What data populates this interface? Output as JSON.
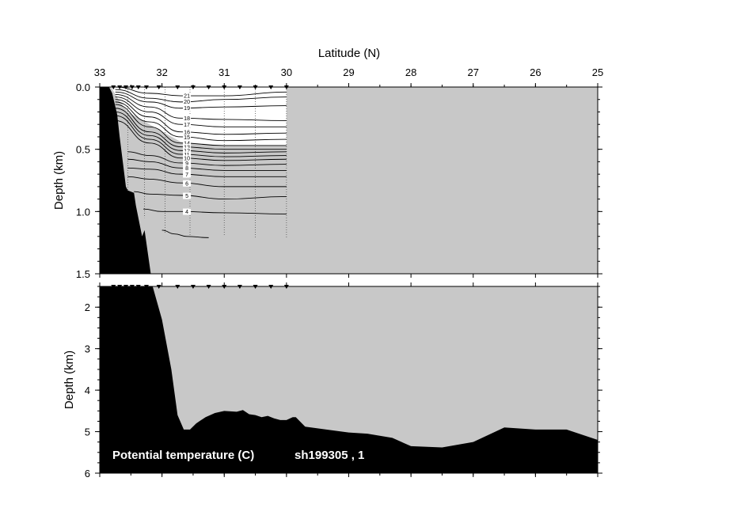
{
  "chart_data": {
    "type": "section-contour",
    "xlabel": "Latitude (N)",
    "ylabel": "Depth (km)",
    "xlim": [
      33,
      25
    ],
    "x_ticks": [
      "33",
      "32",
      "31",
      "30",
      "29",
      "28",
      "27",
      "26",
      "25"
    ],
    "panels": [
      {
        "name": "upper",
        "ylim": [
          0.0,
          1.5
        ],
        "y_ticks": [
          "0.0",
          "0.5",
          "1.0",
          "1.5"
        ]
      },
      {
        "name": "lower",
        "ylim": [
          1.5,
          6.0
        ],
        "y_ticks": [
          "2",
          "3",
          "4",
          "5",
          "6"
        ]
      }
    ],
    "variable": "Potential temperature (C)",
    "cruise": "sh199305 , 1",
    "annotation": "Potential temperature (C)      sh199305 , 1",
    "station_latitudes": [
      32.78,
      32.68,
      32.58,
      32.48,
      32.38,
      32.25,
      32.05,
      31.75,
      31.5,
      31.25,
      31.0,
      30.75,
      30.5,
      30.25,
      30.0
    ],
    "profile_latitudes": [
      32.55,
      32.28,
      31.95,
      31.55,
      31.0,
      30.5,
      30.0
    ],
    "profile_max_depth_km": [
      0.9,
      1.05,
      1.18,
      1.2,
      1.2,
      1.22,
      1.22
    ],
    "contours": [
      {
        "level": 21,
        "label": "21",
        "depth_km": [
          0.0,
          0.05,
          0.07,
          0.07,
          0.04
        ],
        "lat": [
          32.75,
          32.2,
          31.7,
          31.0,
          30.0
        ]
      },
      {
        "level": 20,
        "label": "20",
        "depth_km": [
          0.02,
          0.09,
          0.12,
          0.1,
          0.08
        ],
        "lat": [
          32.75,
          32.2,
          31.7,
          31.0,
          30.0
        ]
      },
      {
        "level": 19,
        "label": "19",
        "depth_km": [
          0.04,
          0.12,
          0.17,
          0.16,
          0.15
        ],
        "lat": [
          32.75,
          32.2,
          31.7,
          31.0,
          30.0
        ]
      },
      {
        "level": 18,
        "label": "18",
        "depth_km": [
          0.06,
          0.16,
          0.25,
          0.26,
          0.27
        ],
        "lat": [
          32.75,
          32.2,
          31.7,
          31.0,
          30.0
        ]
      },
      {
        "level": 17,
        "label": "17",
        "depth_km": [
          0.08,
          0.2,
          0.3,
          0.32,
          0.32
        ],
        "lat": [
          32.75,
          32.2,
          31.7,
          31.0,
          30.0
        ]
      },
      {
        "level": 16,
        "label": "16",
        "depth_km": [
          0.1,
          0.24,
          0.36,
          0.38,
          0.37
        ],
        "lat": [
          32.75,
          32.2,
          31.7,
          31.0,
          30.0
        ]
      },
      {
        "level": 15,
        "label": "15",
        "depth_km": [
          0.12,
          0.28,
          0.4,
          0.43,
          0.42
        ],
        "lat": [
          32.75,
          32.2,
          31.7,
          31.0,
          30.0
        ]
      },
      {
        "level": 14,
        "label": "14",
        "depth_km": [
          0.14,
          0.32,
          0.45,
          0.47,
          0.47
        ],
        "lat": [
          32.75,
          32.2,
          31.7,
          31.0,
          30.0
        ]
      },
      {
        "level": 13,
        "label": "13",
        "depth_km": [
          0.17,
          0.36,
          0.48,
          0.5,
          0.5
        ],
        "lat": [
          32.75,
          32.2,
          31.7,
          31.0,
          30.0
        ]
      },
      {
        "level": 12,
        "label": "12",
        "depth_km": [
          0.2,
          0.39,
          0.51,
          0.53,
          0.52
        ],
        "lat": [
          32.75,
          32.2,
          31.7,
          31.0,
          30.0
        ]
      },
      {
        "level": 11,
        "label": "11",
        "depth_km": [
          0.23,
          0.42,
          0.54,
          0.56,
          0.55
        ],
        "lat": [
          32.75,
          32.2,
          31.7,
          31.0,
          30.0
        ]
      },
      {
        "level": 10,
        "label": "10",
        "depth_km": [
          0.27,
          0.45,
          0.57,
          0.59,
          0.58
        ],
        "lat": [
          32.75,
          32.2,
          31.7,
          31.0,
          30.0
        ]
      },
      {
        "level": 9,
        "label": "9",
        "depth_km": [
          0.52,
          0.55,
          0.61,
          0.63,
          0.62
        ],
        "lat": [
          32.55,
          32.2,
          31.7,
          31.0,
          30.0
        ]
      },
      {
        "level": 8,
        "label": "8",
        "depth_km": [
          0.58,
          0.6,
          0.65,
          0.67,
          0.67
        ],
        "lat": [
          32.55,
          32.2,
          31.7,
          31.0,
          30.0
        ]
      },
      {
        "level": 7,
        "label": "7",
        "depth_km": [
          0.65,
          0.66,
          0.7,
          0.72,
          0.72
        ],
        "lat": [
          32.55,
          32.2,
          31.7,
          31.0,
          30.0
        ]
      },
      {
        "level": 6,
        "label": "6",
        "depth_km": [
          0.72,
          0.74,
          0.77,
          0.8,
          0.8
        ],
        "lat": [
          32.55,
          32.2,
          31.7,
          31.0,
          30.0
        ]
      },
      {
        "level": 5,
        "label": "5",
        "depth_km": [
          0.84,
          0.86,
          0.87,
          0.9,
          0.88
        ],
        "lat": [
          32.45,
          32.2,
          31.7,
          31.0,
          30.0
        ]
      },
      {
        "level": 4,
        "label": "4",
        "depth_km": [
          0.98,
          1.0,
          1.0,
          1.01,
          1.02
        ],
        "lat": [
          32.3,
          32.0,
          31.7,
          31.0,
          30.0
        ]
      },
      {
        "level": 3,
        "label": "",
        "depth_km": [
          1.15,
          1.18,
          1.2,
          1.21
        ],
        "lat": [
          32.0,
          31.8,
          31.6,
          31.25
        ]
      }
    ],
    "bathymetry": {
      "lat": [
        33.0,
        32.85,
        32.8,
        32.72,
        32.68,
        32.58,
        32.55,
        32.45,
        32.42,
        32.32,
        32.28,
        32.18,
        32.15,
        32.0,
        31.85,
        31.75,
        31.65,
        31.55,
        31.45,
        31.3,
        31.15,
        31.0,
        30.8,
        30.7,
        30.6,
        30.5,
        30.4,
        30.3,
        30.2,
        30.1,
        30.0,
        29.9,
        29.85,
        29.7,
        29.5,
        29.3,
        29.0,
        28.7,
        28.3,
        28.0,
        27.5,
        27.0,
        26.5,
        26.0,
        25.5,
        25.0
      ],
      "depth_km": [
        0.0,
        0.0,
        0.05,
        0.22,
        0.4,
        0.8,
        0.83,
        0.85,
        0.95,
        1.2,
        1.15,
        1.5,
        1.5,
        2.3,
        3.5,
        4.6,
        4.95,
        4.95,
        4.8,
        4.65,
        4.55,
        4.5,
        4.52,
        4.48,
        4.58,
        4.6,
        4.65,
        4.62,
        4.68,
        4.72,
        4.72,
        4.65,
        4.65,
        4.88,
        4.92,
        4.96,
        5.02,
        5.05,
        5.15,
        5.35,
        5.38,
        5.25,
        4.9,
        4.95,
        4.95,
        5.2
      ]
    },
    "colors": {
      "background": "#c8c8c8",
      "land": "#000000",
      "contour": "#000000",
      "annotation": "#ffffff"
    }
  }
}
